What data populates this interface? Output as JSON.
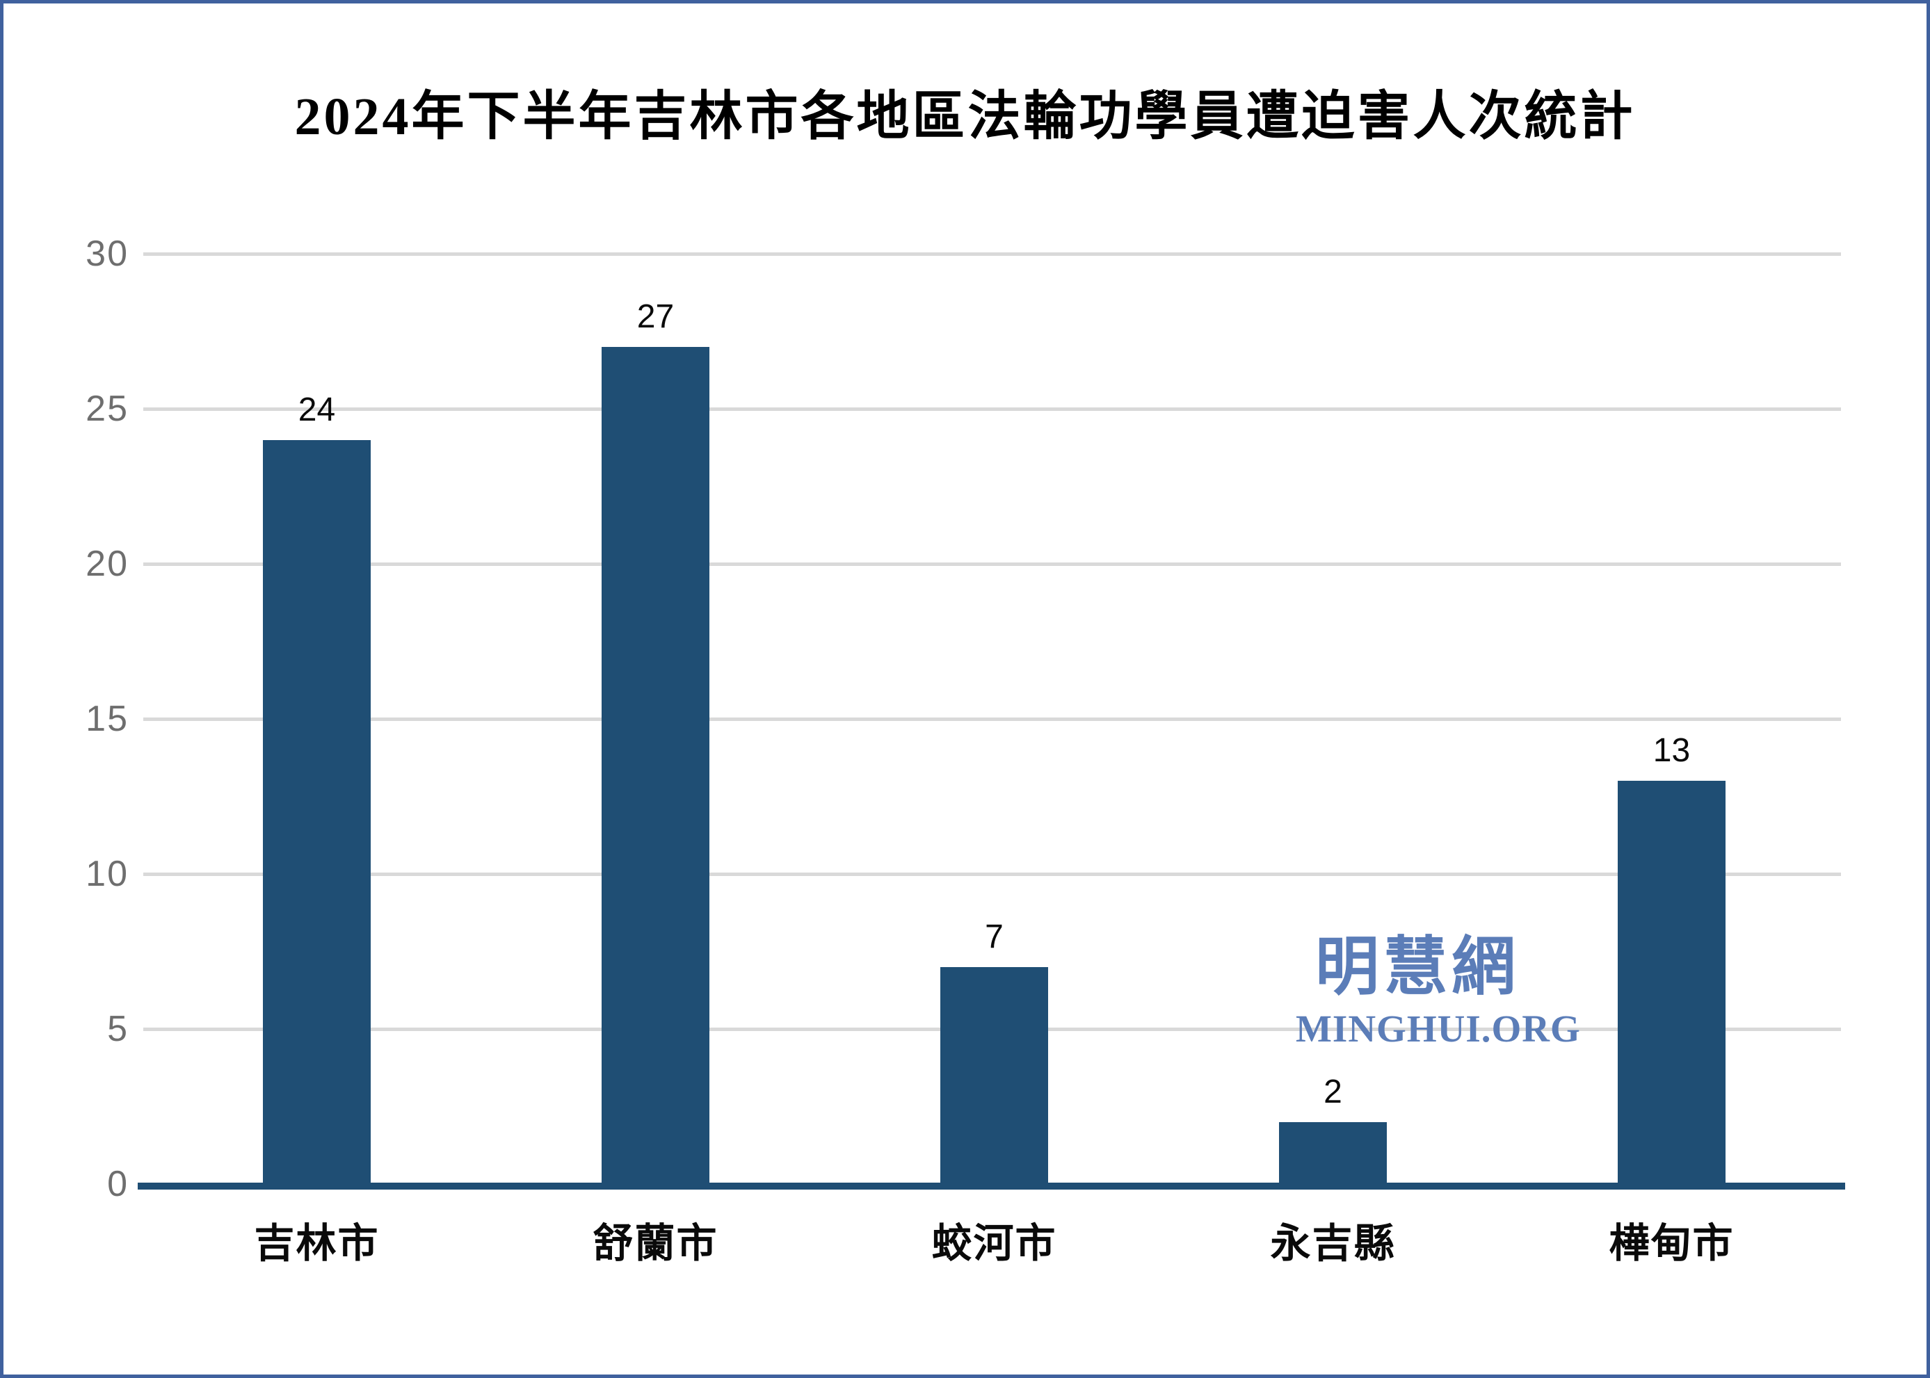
{
  "chart_data": {
    "type": "bar",
    "title": "2024年下半年吉林市各地區法輪功學員遭迫害人次統計",
    "categories": [
      "吉林市",
      "舒蘭市",
      "蛟河市",
      "永吉縣",
      "樺甸市"
    ],
    "values": [
      24,
      27,
      7,
      2,
      13
    ],
    "xlabel": "",
    "ylabel": "",
    "ylim": [
      0,
      30
    ],
    "yticks": [
      0,
      5,
      10,
      15,
      20,
      25,
      30
    ],
    "grid": true,
    "legend": false,
    "data_labels": true,
    "bar_color": "#1f4e74",
    "axis_line_color": "#1f4e74",
    "gridline_color": "#d9d9d9",
    "tick_label_color": "#6e6e6e"
  },
  "watermark": {
    "cjk": "明慧網",
    "latin": "MINGHUI.ORG",
    "color": "#5b7db8"
  },
  "frame": {
    "border_color": "#40619e",
    "background": "#ffffff"
  }
}
